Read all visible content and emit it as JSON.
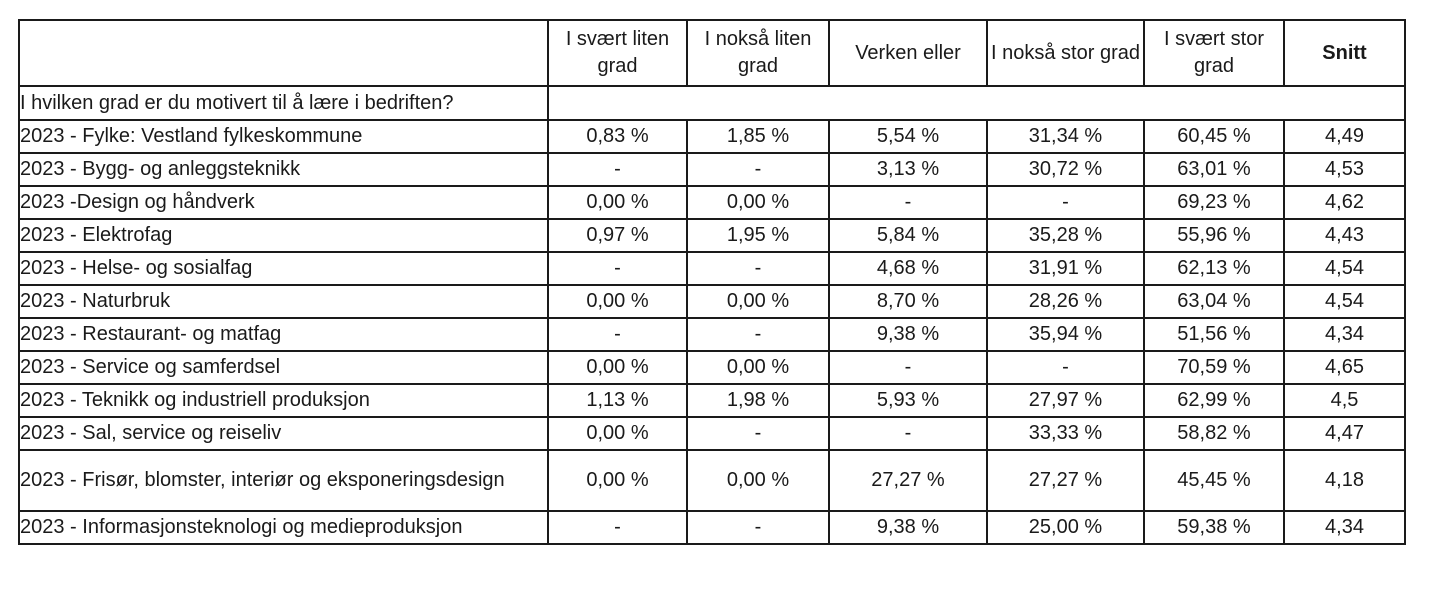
{
  "chart_data": {
    "type": "table",
    "title": "",
    "columns": [
      "",
      "I svært liten grad",
      "I nokså liten grad",
      "Verken eller",
      "I nokså stor grad",
      "I svært stor grad",
      "Snitt"
    ],
    "question": "I hvilken grad er du motivert til å lære i bedriften?",
    "rows": [
      {
        "label": "2023 - Fylke: Vestland fylkeskommune",
        "values": [
          "0,83 %",
          "1,85 %",
          "5,54 %",
          "31,34 %",
          "60,45 %"
        ],
        "snitt": "4,49"
      },
      {
        "label": "2023 - Bygg- og anleggsteknikk",
        "values": [
          "-",
          "-",
          "3,13 %",
          "30,72 %",
          "63,01 %"
        ],
        "snitt": "4,53"
      },
      {
        "label": "2023 -Design og håndverk",
        "values": [
          "0,00 %",
          "0,00 %",
          "-",
          "-",
          "69,23 %"
        ],
        "snitt": "4,62"
      },
      {
        "label": "2023 - Elektrofag",
        "values": [
          "0,97 %",
          "1,95 %",
          "5,84 %",
          "35,28 %",
          "55,96 %"
        ],
        "snitt": "4,43"
      },
      {
        "label": "2023 - Helse- og sosialfag",
        "values": [
          "-",
          "-",
          "4,68 %",
          "31,91 %",
          "62,13 %"
        ],
        "snitt": "4,54"
      },
      {
        "label": "2023 - Naturbruk",
        "values": [
          "0,00 %",
          "0,00 %",
          "8,70 %",
          "28,26 %",
          "63,04 %"
        ],
        "snitt": "4,54"
      },
      {
        "label": "2023 - Restaurant- og matfag",
        "values": [
          "-",
          "-",
          "9,38 %",
          "35,94 %",
          "51,56 %"
        ],
        "snitt": "4,34"
      },
      {
        "label": "2023 - Service og samferdsel",
        "values": [
          "0,00 %",
          "0,00 %",
          "-",
          "-",
          "70,59 %"
        ],
        "snitt": "4,65"
      },
      {
        "label": "2023 - Teknikk og industriell produksjon",
        "values": [
          "1,13 %",
          "1,98 %",
          "5,93 %",
          "27,97 %",
          "62,99 %"
        ],
        "snitt": "4,5"
      },
      {
        "label": "2023 - Sal, service og reiseliv",
        "values": [
          "0,00 %",
          "-",
          "-",
          "33,33 %",
          "58,82 %"
        ],
        "snitt": "4,47"
      },
      {
        "label": "2023 - Frisør, blomster, interiør og eksponeringsdesign",
        "values": [
          "0,00 %",
          "0,00 %",
          "27,27 %",
          "27,27 %",
          "45,45 %"
        ],
        "snitt": "4,18"
      },
      {
        "label": "2023 - Informasjonsteknologi og medieproduksjon",
        "values": [
          "-",
          "-",
          "9,38 %",
          "25,00 %",
          "59,38 %"
        ],
        "snitt": "4,34"
      }
    ]
  }
}
